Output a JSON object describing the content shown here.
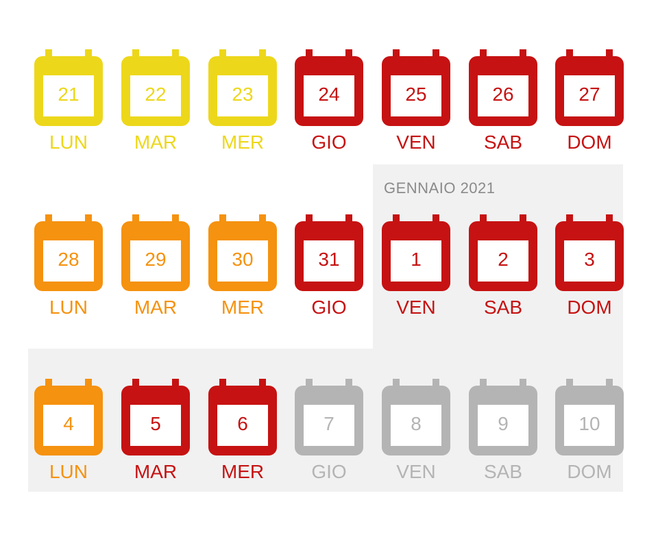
{
  "colors": {
    "yellow": "#EDD71B",
    "orange": "#F5920F",
    "red": "#C61212",
    "gray": "#B4B4B4",
    "panel": "#F1F1F1",
    "label": "#8A8A8A"
  },
  "month_label": "GENNAIO 2021",
  "weeks": [
    {
      "days": [
        {
          "num": "21",
          "weekday": "LUN",
          "color": "#EDD71B"
        },
        {
          "num": "22",
          "weekday": "MAR",
          "color": "#EDD71B"
        },
        {
          "num": "23",
          "weekday": "MER",
          "color": "#EDD71B"
        },
        {
          "num": "24",
          "weekday": "GIO",
          "color": "#C61212"
        },
        {
          "num": "25",
          "weekday": "VEN",
          "color": "#C61212"
        },
        {
          "num": "26",
          "weekday": "SAB",
          "color": "#C61212"
        },
        {
          "num": "27",
          "weekday": "DOM",
          "color": "#C61212"
        }
      ]
    },
    {
      "days": [
        {
          "num": "28",
          "weekday": "LUN",
          "color": "#F5920F"
        },
        {
          "num": "29",
          "weekday": "MAR",
          "color": "#F5920F"
        },
        {
          "num": "30",
          "weekday": "MER",
          "color": "#F5920F"
        },
        {
          "num": "31",
          "weekday": "GIO",
          "color": "#C61212"
        },
        {
          "num": "1",
          "weekday": "VEN",
          "color": "#C61212"
        },
        {
          "num": "2",
          "weekday": "SAB",
          "color": "#C61212"
        },
        {
          "num": "3",
          "weekday": "DOM",
          "color": "#C61212"
        }
      ]
    },
    {
      "days": [
        {
          "num": "4",
          "weekday": "LUN",
          "color": "#F5920F"
        },
        {
          "num": "5",
          "weekday": "MAR",
          "color": "#C61212"
        },
        {
          "num": "6",
          "weekday": "MER",
          "color": "#C61212"
        },
        {
          "num": "7",
          "weekday": "GIO",
          "color": "#B4B4B4"
        },
        {
          "num": "8",
          "weekday": "VEN",
          "color": "#B4B4B4"
        },
        {
          "num": "9",
          "weekday": "SAB",
          "color": "#B4B4B4"
        },
        {
          "num": "10",
          "weekday": "DOM",
          "color": "#B4B4B4"
        }
      ]
    }
  ]
}
